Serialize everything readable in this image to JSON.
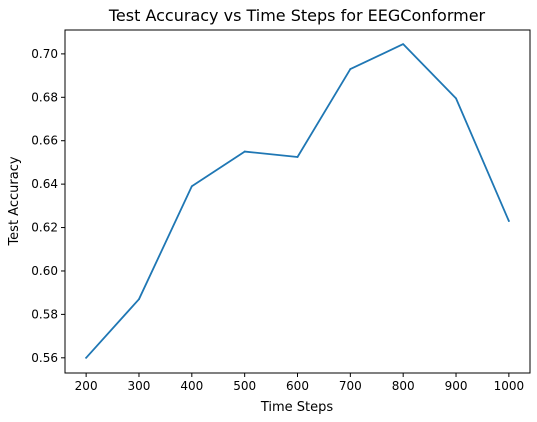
{
  "chart_data": {
    "type": "line",
    "title": "Test Accuracy vs Time Steps for EEGConformer",
    "xlabel": "Time Steps",
    "ylabel": "Test Accuracy",
    "x": [
      200,
      300,
      400,
      500,
      600,
      700,
      800,
      900,
      1000
    ],
    "series": [
      {
        "values": [
          0.56,
          0.587,
          0.639,
          0.655,
          0.6525,
          0.693,
          0.7045,
          0.6795,
          0.623
        ]
      }
    ],
    "xticks": [
      200,
      300,
      400,
      500,
      600,
      700,
      800,
      900,
      1000
    ],
    "yticks": [
      "0.56",
      "0.58",
      "0.60",
      "0.62",
      "0.64",
      "0.66",
      "0.68",
      "0.70"
    ],
    "xlim": [
      160,
      1040
    ],
    "ylim": [
      0.553,
      0.711
    ],
    "grid": false,
    "colors": {
      "line": "#1f77b4",
      "axes": "#000000",
      "background": "#ffffff"
    }
  }
}
